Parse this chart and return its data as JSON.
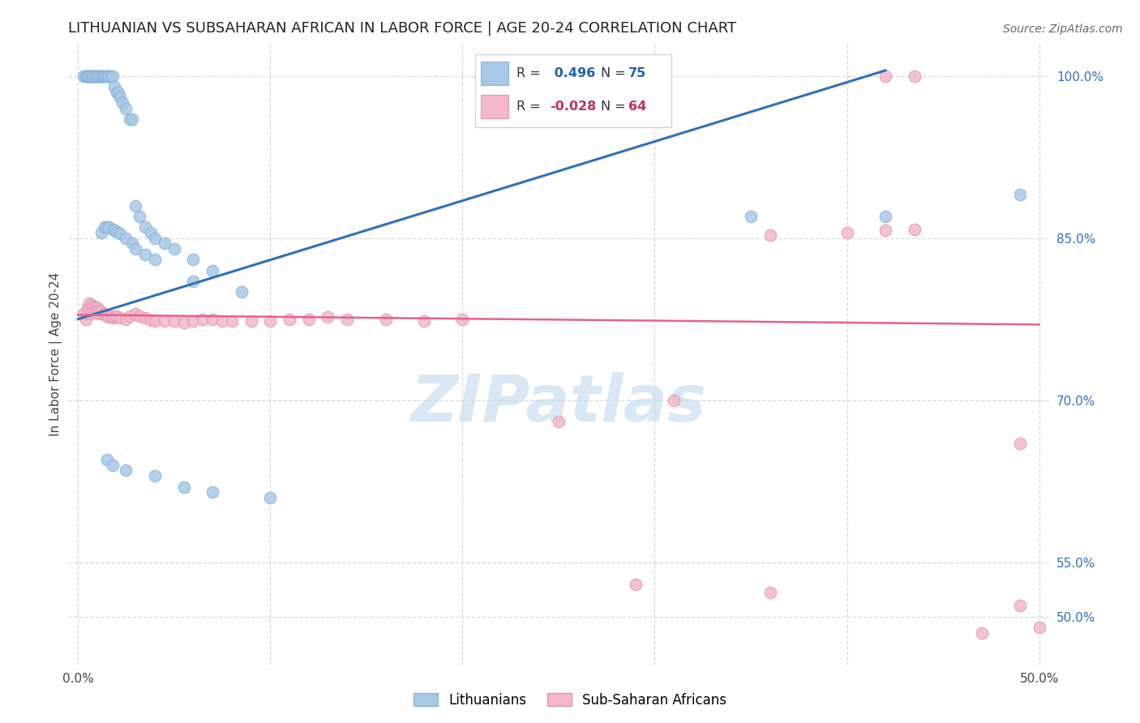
{
  "title": "LITHUANIAN VS SUBSAHARAN AFRICAN IN LABOR FORCE | AGE 20-24 CORRELATION CHART",
  "source": "Source: ZipAtlas.com",
  "ylabel": "In Labor Force | Age 20-24",
  "xlim": [
    -0.005,
    0.505
  ],
  "ylim": [
    0.455,
    1.03
  ],
  "xticks": [
    0.0,
    0.1,
    0.2,
    0.3,
    0.4,
    0.5
  ],
  "xticklabels": [
    "0.0%",
    "",
    "",
    "",
    "",
    "50.0%"
  ],
  "yticks_right": [
    0.5,
    0.55,
    0.7,
    0.85,
    1.0
  ],
  "yticklabels_right": [
    "50.0%",
    "55.0%",
    "70.0%",
    "85.0%",
    "100.0%"
  ],
  "blue_color": "#a8c8e8",
  "pink_color": "#f4b8c8",
  "blue_line_color": "#3070b8",
  "pink_line_color": "#e86090",
  "watermark_color": "#c8dff0",
  "grid_color": "#d8d8d8",
  "blue_x": [
    0.003,
    0.004,
    0.004,
    0.005,
    0.005,
    0.005,
    0.006,
    0.006,
    0.006,
    0.007,
    0.007,
    0.007,
    0.008,
    0.008,
    0.008,
    0.009,
    0.009,
    0.01,
    0.01,
    0.01,
    0.011,
    0.011,
    0.012,
    0.012,
    0.013,
    0.014,
    0.014,
    0.015,
    0.015,
    0.016,
    0.016,
    0.017,
    0.018,
    0.019,
    0.02,
    0.021,
    0.022,
    0.023,
    0.025,
    0.027,
    0.028,
    0.03,
    0.032,
    0.035,
    0.038,
    0.04,
    0.045,
    0.05,
    0.06,
    0.07,
    0.012,
    0.014,
    0.015,
    0.016,
    0.018,
    0.019,
    0.02,
    0.022,
    0.025,
    0.028,
    0.03,
    0.035,
    0.04,
    0.06,
    0.085,
    0.35,
    0.42,
    0.49,
    0.015,
    0.018,
    0.025,
    0.04,
    0.055,
    0.07,
    0.1
  ],
  "blue_y": [
    1.0,
    1.0,
    1.0,
    1.0,
    1.0,
    1.0,
    1.0,
    1.0,
    1.0,
    1.0,
    1.0,
    1.0,
    1.0,
    1.0,
    1.0,
    1.0,
    1.0,
    1.0,
    1.0,
    1.0,
    1.0,
    1.0,
    1.0,
    1.0,
    1.0,
    1.0,
    1.0,
    1.0,
    1.0,
    1.0,
    1.0,
    1.0,
    1.0,
    0.99,
    0.985,
    0.985,
    0.98,
    0.975,
    0.97,
    0.96,
    0.96,
    0.88,
    0.87,
    0.86,
    0.855,
    0.85,
    0.845,
    0.84,
    0.83,
    0.82,
    0.855,
    0.86,
    0.86,
    0.86,
    0.858,
    0.857,
    0.856,
    0.854,
    0.85,
    0.845,
    0.84,
    0.835,
    0.83,
    0.81,
    0.8,
    0.87,
    0.87,
    0.89,
    0.645,
    0.64,
    0.635,
    0.63,
    0.62,
    0.615,
    0.61
  ],
  "pink_x": [
    0.003,
    0.004,
    0.005,
    0.005,
    0.006,
    0.006,
    0.007,
    0.007,
    0.008,
    0.008,
    0.009,
    0.009,
    0.01,
    0.01,
    0.011,
    0.011,
    0.012,
    0.013,
    0.014,
    0.015,
    0.016,
    0.017,
    0.018,
    0.019,
    0.02,
    0.022,
    0.025,
    0.027,
    0.03,
    0.032,
    0.035,
    0.038,
    0.04,
    0.045,
    0.05,
    0.055,
    0.06,
    0.065,
    0.07,
    0.075,
    0.08,
    0.09,
    0.1,
    0.11,
    0.12,
    0.13,
    0.14,
    0.16,
    0.18,
    0.2,
    0.25,
    0.31,
    0.36,
    0.4,
    0.42,
    0.435,
    0.49,
    0.42,
    0.435,
    0.29,
    0.36,
    0.47,
    0.49,
    0.5
  ],
  "pink_y": [
    0.78,
    0.775,
    0.785,
    0.78,
    0.79,
    0.785,
    0.788,
    0.783,
    0.787,
    0.782,
    0.786,
    0.781,
    0.785,
    0.782,
    0.783,
    0.78,
    0.782,
    0.78,
    0.779,
    0.778,
    0.777,
    0.778,
    0.776,
    0.777,
    0.778,
    0.776,
    0.775,
    0.778,
    0.78,
    0.778,
    0.776,
    0.774,
    0.773,
    0.773,
    0.773,
    0.772,
    0.773,
    0.775,
    0.775,
    0.773,
    0.773,
    0.773,
    0.773,
    0.775,
    0.775,
    0.777,
    0.775,
    0.775,
    0.773,
    0.775,
    0.68,
    0.7,
    0.853,
    0.855,
    0.857,
    0.858,
    0.66,
    1.0,
    1.0,
    0.53,
    0.522,
    0.485,
    0.51,
    0.49
  ],
  "blue_line_x": [
    0.0,
    0.42
  ],
  "blue_line_y": [
    0.775,
    1.005
  ],
  "pink_line_x": [
    0.0,
    0.5
  ],
  "pink_line_y": [
    0.779,
    0.77
  ]
}
